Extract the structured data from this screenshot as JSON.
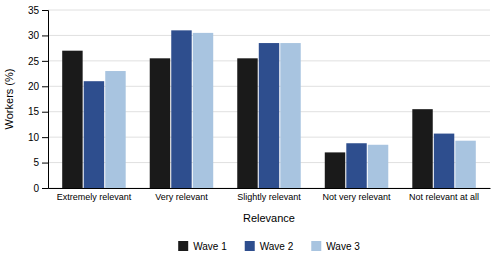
{
  "chart_data": {
    "type": "bar",
    "categories": [
      "Extremely relevant",
      "Very relevant",
      "Slightly relevant",
      "Not very relevant",
      "Not relevant at all"
    ],
    "series": [
      {
        "name": "Wave 1",
        "color": "#1a1a1a",
        "values": [
          27.0,
          25.5,
          25.5,
          7.0,
          15.5
        ]
      },
      {
        "name": "Wave 2",
        "color": "#2e4e8e",
        "values": [
          21.0,
          31.0,
          28.5,
          8.8,
          10.7
        ]
      },
      {
        "name": "Wave 3",
        "color": "#a8c4e0",
        "values": [
          23.0,
          30.5,
          28.5,
          8.5,
          9.3
        ]
      }
    ],
    "xlabel": "Relevance",
    "ylabel": "Workers (%)",
    "ylim": [
      0,
      35
    ],
    "yticks": [
      0,
      5,
      10,
      15,
      20,
      25,
      30,
      35
    ],
    "grid": true,
    "legend": "bottom"
  }
}
